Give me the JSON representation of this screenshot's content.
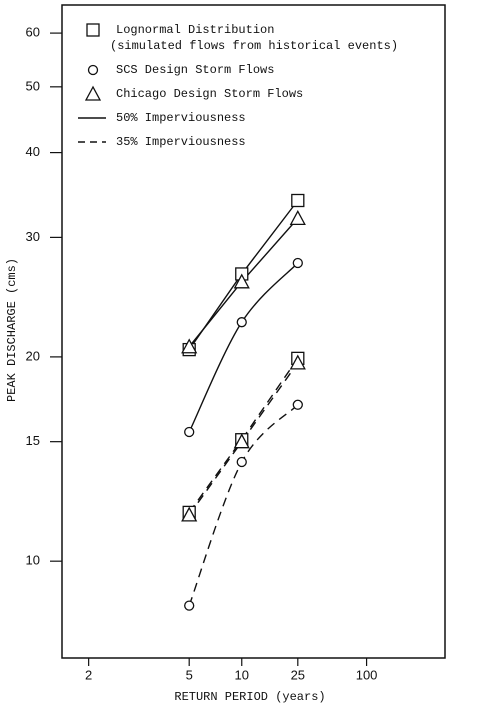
{
  "chart_data": {
    "type": "line",
    "xlabel": "RETURN PERIOD (years)",
    "ylabel": "PEAK DISCHARGE (cms)",
    "xscale": "normal-probability",
    "yscale": "log",
    "x": [
      5,
      10,
      25
    ],
    "xlim": [
      1.7,
      700
    ],
    "xticks": [
      2,
      5,
      10,
      25,
      100
    ],
    "ylim": [
      7.2,
      66
    ],
    "yticks": [
      10,
      15,
      20,
      30,
      40,
      50,
      60
    ],
    "color": "#111111",
    "series": [
      {
        "marker": "square",
        "linestyle": "solid",
        "smooth": false,
        "values": [
          20.5,
          26.5,
          34
        ]
      },
      {
        "marker": "triangle",
        "linestyle": "solid",
        "smooth": false,
        "values": [
          20.7,
          25.8,
          32
        ]
      },
      {
        "marker": "circle",
        "linestyle": "solid",
        "smooth": true,
        "values": [
          15.5,
          22.5,
          27.5
        ]
      },
      {
        "marker": "square",
        "linestyle": "dashed",
        "smooth": false,
        "values": [
          11.8,
          15.1,
          19.9
        ]
      },
      {
        "marker": "triangle",
        "linestyle": "dashed",
        "smooth": false,
        "values": [
          11.7,
          15.0,
          19.6
        ]
      },
      {
        "marker": "circle",
        "linestyle": "dashed",
        "smooth": true,
        "values": [
          8.6,
          14,
          17
        ]
      }
    ],
    "legend": [
      {
        "marker": "square",
        "text": [
          "Lognormal Distribution",
          "(simulated flows from historical events)"
        ]
      },
      {
        "marker": "circle",
        "text": [
          "SCS Design Storm Flows"
        ]
      },
      {
        "marker": "triangle",
        "text": [
          "Chicago Design Storm Flows"
        ]
      },
      {
        "linestyle": "solid",
        "text": [
          "50% Imperviousness"
        ]
      },
      {
        "linestyle": "dashed",
        "text": [
          "35% Imperviousness"
        ]
      }
    ]
  }
}
